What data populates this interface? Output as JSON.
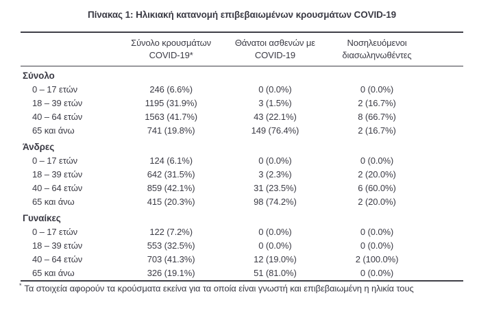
{
  "page": {
    "title": "Πίνακας 1: Ηλικιακή κατανομή επιβεβαιωμένων κρουσμάτων COVID-19"
  },
  "table": {
    "columns": [
      "Σύνολο κρουσμάτων\nCOVID-19*",
      "Θάνατοι ασθενών με\nCOVID-19",
      "Νοσηλευόμενοι\nδιασωληνωθέντες"
    ],
    "sections": [
      {
        "title": "Σύνολο",
        "rows": [
          {
            "label": "0 – 17 ετών",
            "cases": "246 (6.6%)",
            "deaths": "0 (0.0%)",
            "intubated": "0 (0.0%)"
          },
          {
            "label": "18 – 39 ετών",
            "cases": "1195 (31.9%)",
            "deaths": "3 (1.5%)",
            "intubated": "2 (16.7%)"
          },
          {
            "label": "40 – 64 ετών",
            "cases": "1563 (41.7%)",
            "deaths": "43 (22.1%)",
            "intubated": "8 (66.7%)"
          },
          {
            "label": "65 και άνω",
            "cases": "741 (19.8%)",
            "deaths": "149 (76.4%)",
            "intubated": "2 (16.7%)"
          }
        ]
      },
      {
        "title": "Άνδρες",
        "rows": [
          {
            "label": "0 – 17 ετών",
            "cases": "124 (6.1%)",
            "deaths": "0 (0.0%)",
            "intubated": "0 (0.0%)"
          },
          {
            "label": "18 – 39 ετών",
            "cases": "642 (31.5%)",
            "deaths": "3 (2.3%)",
            "intubated": "2 (20.0%)"
          },
          {
            "label": "40 – 64 ετών",
            "cases": "859 (42.1%)",
            "deaths": "31 (23.5%)",
            "intubated": "6 (60.0%)"
          },
          {
            "label": "65 και άνω",
            "cases": "415 (20.3%)",
            "deaths": "98 (74.2%)",
            "intubated": "2 (20.0%)"
          }
        ]
      },
      {
        "title": "Γυναίκες",
        "rows": [
          {
            "label": "0 – 17 ετών",
            "cases": "122 (7.2%)",
            "deaths": "0 (0.0%)",
            "intubated": "0 (0.0%)"
          },
          {
            "label": "18 – 39 ετών",
            "cases": "553 (32.5%)",
            "deaths": "0 (0.0%)",
            "intubated": "0 (0.0%)"
          },
          {
            "label": "40 – 64 ετών",
            "cases": "703 (41.3%)",
            "deaths": "12 (19.0%)",
            "intubated": "2 (100.0%)"
          },
          {
            "label": "65 και άνω",
            "cases": "326 (19.1%)",
            "deaths": "51 (81.0%)",
            "intubated": "0 (0.0%)"
          }
        ]
      }
    ],
    "footnote": {
      "marker": "*",
      "text": "Τα στοιχεία αφορούν τα κρούσματα εκείνα για τα οποία είναι γνωστή και επιβεβαιωμένη η ηλικία τους"
    }
  },
  "colors": {
    "text": "#3a3a44",
    "border": "#3e3e46",
    "background": "#ffffff"
  }
}
